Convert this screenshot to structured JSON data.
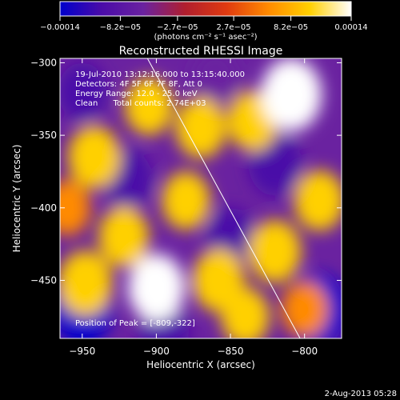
{
  "chart_data": {
    "type": "heatmap",
    "title": "Reconstructed RHESSI Image",
    "xlabel": "Heliocentric X (arcsec)",
    "ylabel": "Heliocentric Y (arcsec)",
    "xlim": [
      -965,
      -775
    ],
    "ylim": [
      -490,
      -297
    ],
    "x_ticks": [
      -950,
      -900,
      -850,
      -800
    ],
    "y_ticks": [
      -300,
      -350,
      -400,
      -450
    ],
    "x_tick_labels": [
      "−950",
      "−900",
      "−850",
      "−800"
    ],
    "y_tick_labels": [
      "−300",
      "−350",
      "−400",
      "−450"
    ],
    "colorbar": {
      "range": [
        -0.00014,
        0.00014
      ],
      "tick_values": [
        -0.00014,
        -8.2e-05,
        -2.7e-05,
        2.7e-05,
        8.2e-05,
        0.00014
      ],
      "tick_labels": [
        "−0.00014",
        "−8.2e−05",
        "−2.7e−05",
        "2.7e−05",
        "8.2e−05",
        "0.00014"
      ],
      "units_label": "(photons cm⁻² s⁻¹ asec⁻²)",
      "palette": [
        "#0000cc",
        "#4a0ba8",
        "#6a22a0",
        "#b01e2e",
        "#e03a10",
        "#ff8a00",
        "#ffd000",
        "#ffffff"
      ]
    },
    "annotations": [
      "19-Jul-2010 13:12:16.000 to 13:15:40.000",
      "Detectors: 4F 5F 6F 7F 8F, Att 0",
      "Energy Range: 12.0 - 25.0 keV",
      "Clean      Total counts: 2.74E+03"
    ],
    "peak_label": "Position of Peak = [-809,-322]",
    "peak_position": [
      -809,
      -322
    ],
    "limb_line": {
      "x": [
        -906,
        -803
      ],
      "y": [
        -297,
        -490
      ]
    },
    "peaks": [
      {
        "x": -942,
        "y": -365,
        "v": 0.0001
      },
      {
        "x": -905,
        "y": -330,
        "v": 8e-05
      },
      {
        "x": -870,
        "y": -345,
        "v": 9e-05
      },
      {
        "x": -922,
        "y": -420,
        "v": 9e-05
      },
      {
        "x": -948,
        "y": -452,
        "v": 0.00011
      },
      {
        "x": -900,
        "y": -455,
        "v": 0.00012
      },
      {
        "x": -880,
        "y": -395,
        "v": 8e-05
      },
      {
        "x": -835,
        "y": -340,
        "v": 9e-05
      },
      {
        "x": -809,
        "y": -322,
        "v": 0.00014
      },
      {
        "x": -858,
        "y": -450,
        "v": 0.0001
      },
      {
        "x": -820,
        "y": -430,
        "v": 0.0001
      },
      {
        "x": -790,
        "y": -395,
        "v": 9e-05
      },
      {
        "x": -840,
        "y": -475,
        "v": 8e-05
      },
      {
        "x": -960,
        "y": -400,
        "v": 7e-05
      },
      {
        "x": -800,
        "y": -470,
        "v": 7e-05
      }
    ],
    "troughs": [
      {
        "x": -950,
        "y": -470,
        "v": -0.00014
      },
      {
        "x": -920,
        "y": -380,
        "v": -9e-05
      },
      {
        "x": -950,
        "y": -320,
        "v": -8e-05
      },
      {
        "x": -820,
        "y": -370,
        "v": -0.0001
      },
      {
        "x": -790,
        "y": -470,
        "v": -0.00013
      },
      {
        "x": -850,
        "y": -420,
        "v": -8e-05
      },
      {
        "x": -895,
        "y": -485,
        "v": -9e-05
      },
      {
        "x": -860,
        "y": -310,
        "v": -7e-05
      }
    ]
  },
  "footer_timestamp": "2-Aug-2013 05:28"
}
